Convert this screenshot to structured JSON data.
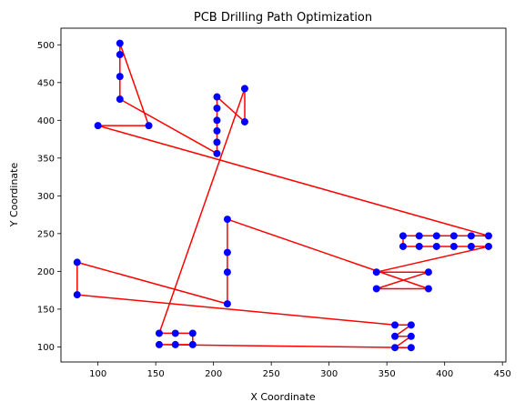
{
  "chart_data": {
    "type": "scatter",
    "title": "PCB Drilling Path Optimization",
    "xlabel": "X Coordinate",
    "ylabel": "Y Coordinate",
    "xlim": [
      68,
      453
    ],
    "ylim": [
      80,
      522
    ],
    "xticks": [
      100,
      150,
      200,
      250,
      300,
      350,
      400,
      450
    ],
    "yticks": [
      100,
      150,
      200,
      250,
      300,
      350,
      400,
      450,
      500
    ],
    "grid": false,
    "point_color": "#0000ff",
    "path_color": "#ff0000",
    "path": [
      [
        153,
        103
      ],
      [
        167,
        103
      ],
      [
        182,
        103
      ],
      [
        182,
        118
      ],
      [
        167,
        118
      ],
      [
        153,
        118
      ],
      [
        227,
        442
      ],
      [
        227,
        398
      ],
      [
        203,
        431
      ],
      [
        203,
        416
      ],
      [
        203,
        400
      ],
      [
        203,
        386
      ],
      [
        203,
        371
      ],
      [
        203,
        356
      ],
      [
        119,
        428
      ],
      [
        119,
        458
      ],
      [
        119,
        487
      ],
      [
        119,
        502
      ],
      [
        144,
        393
      ],
      [
        100,
        393
      ],
      [
        438,
        247
      ],
      [
        423,
        247
      ],
      [
        408,
        247
      ],
      [
        393,
        247
      ],
      [
        378,
        247
      ],
      [
        364,
        247
      ],
      [
        364,
        233
      ],
      [
        378,
        233
      ],
      [
        393,
        233
      ],
      [
        408,
        233
      ],
      [
        423,
        233
      ],
      [
        438,
        233
      ],
      [
        341,
        199
      ],
      [
        386,
        199
      ],
      [
        341,
        177
      ],
      [
        386,
        177
      ],
      [
        212,
        269
      ],
      [
        212,
        225
      ],
      [
        212,
        199
      ],
      [
        212,
        157
      ],
      [
        82,
        212
      ],
      [
        82,
        169
      ],
      [
        357,
        129
      ],
      [
        371,
        129
      ],
      [
        357,
        114
      ],
      [
        371,
        114
      ],
      [
        357,
        99
      ],
      [
        371,
        99
      ],
      [
        153,
        103
      ]
    ]
  }
}
